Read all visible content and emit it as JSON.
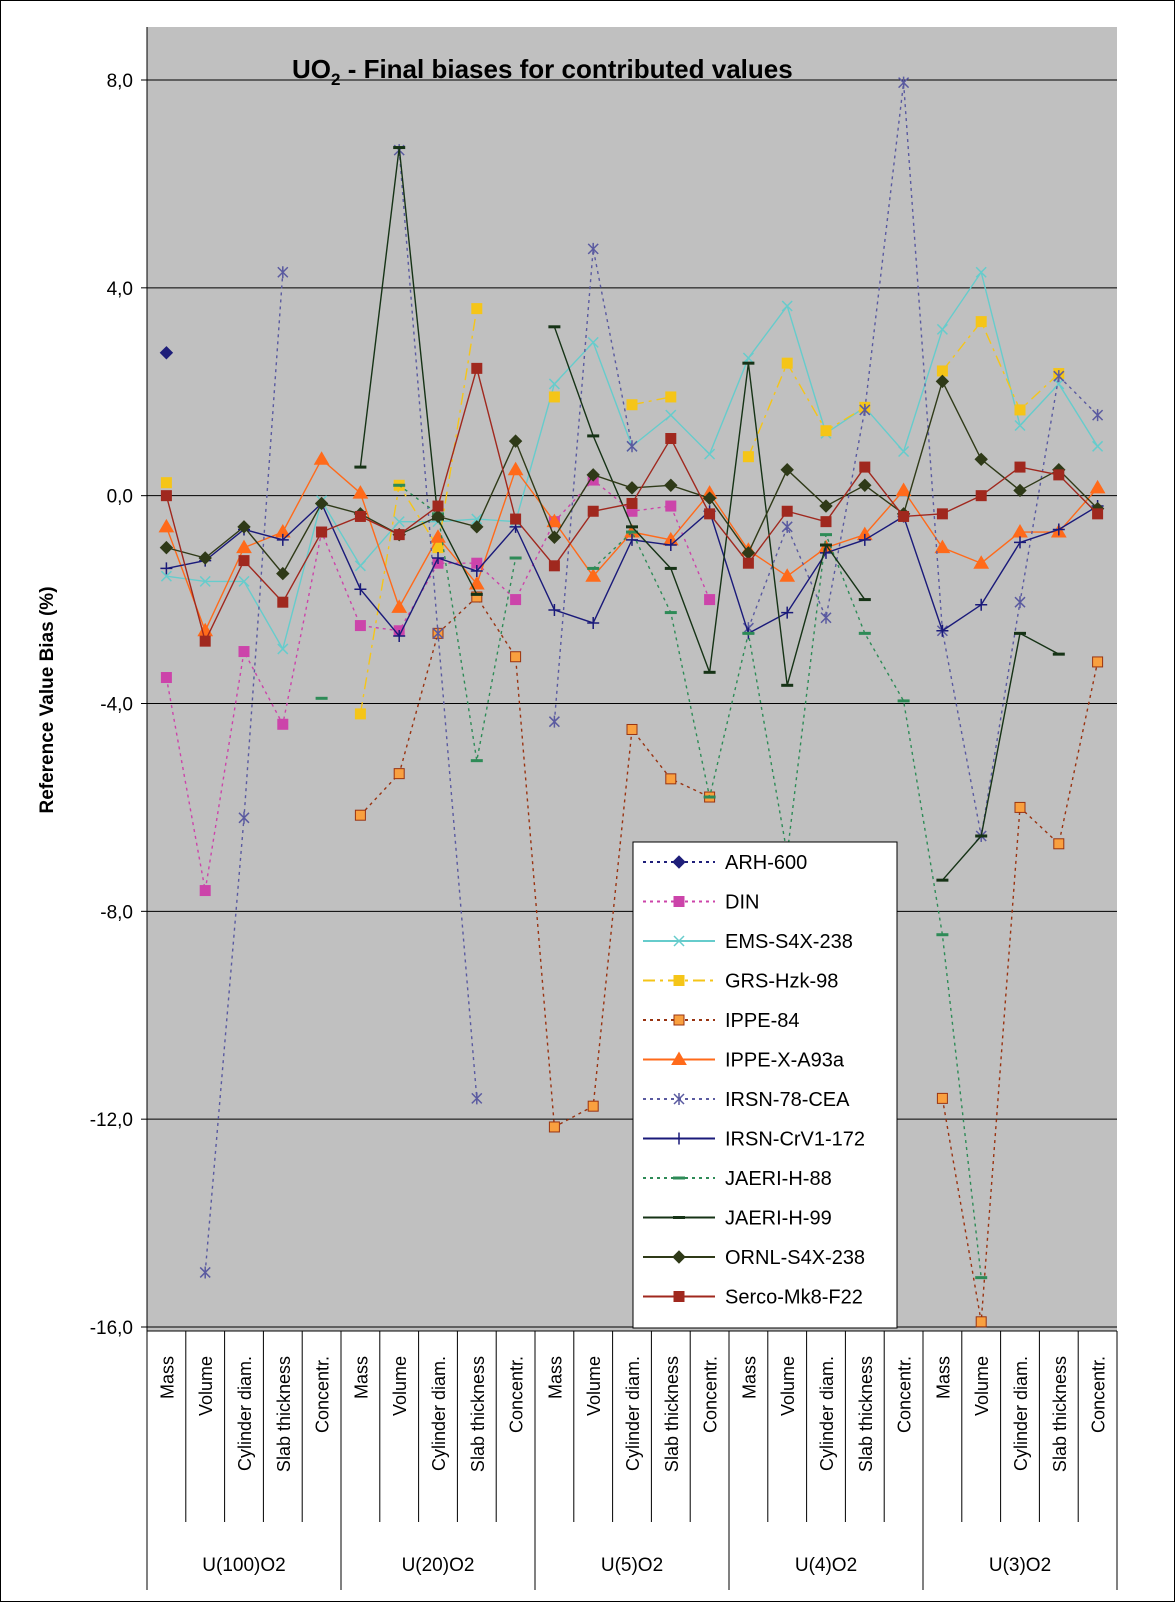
{
  "chart_data": {
    "type": "line",
    "title_main": "UO",
    "title_sub": "2",
    "title_rest": " - Final biases for contributed values",
    "ylabel": "Reference Value Bias (%)",
    "ylim": [
      -16,
      8
    ],
    "yticks": [
      8,
      4,
      0,
      -4,
      -8,
      -12,
      -16
    ],
    "ytick_labels": [
      "8,0",
      "4,0",
      "0,0",
      "-4,0",
      "-8,0",
      "-12,0",
      "-16,0"
    ],
    "grid": true,
    "legend_position": "lower-center",
    "categories": [
      "Mass",
      "Volume",
      "Cylinder diam.",
      "Slab thickness",
      "Concentr.",
      "Mass",
      "Volume",
      "Cylinder diam.",
      "Slab thickness",
      "Concentr.",
      "Mass",
      "Volume",
      "Cylinder diam.",
      "Slab thickness",
      "Concentr.",
      "Mass",
      "Volume",
      "Cylinder diam.",
      "Slab thickness",
      "Concentr.",
      "Mass",
      "Volume",
      "Cylinder diam.",
      "Slab thickness",
      "Concentr."
    ],
    "groups": [
      "U(100)O2",
      "U(20)O2",
      "U(5)O2",
      "U(4)O2",
      "U(3)O2"
    ],
    "series": [
      {
        "name": "ARH-600",
        "color": "#1f1f7a",
        "marker": "diamond",
        "dash": "dot",
        "values": [
          2.75,
          null,
          null,
          null,
          null,
          null,
          null,
          null,
          null,
          null,
          null,
          null,
          null,
          null,
          null,
          null,
          null,
          null,
          null,
          null,
          null,
          null,
          null,
          null,
          null
        ]
      },
      {
        "name": "DIN",
        "color": "#cc44aa",
        "marker": "square",
        "dash": "dot",
        "values": [
          -3.5,
          -7.6,
          -3.0,
          -4.4,
          -0.7,
          -2.5,
          -2.6,
          -1.3,
          -1.3,
          -2.0,
          -0.5,
          0.3,
          -0.3,
          -0.2,
          -2.0,
          null,
          null,
          null,
          null,
          null,
          null,
          null,
          null,
          null,
          null
        ]
      },
      {
        "name": "EMS-S4X-238",
        "color": "#66cccc",
        "marker": "x",
        "dash": "solid",
        "values": [
          -1.55,
          -1.65,
          -1.65,
          -2.95,
          -0.1,
          -1.35,
          -0.5,
          -0.5,
          -0.45,
          -0.5,
          2.15,
          2.95,
          0.95,
          1.55,
          0.8,
          2.65,
          3.65,
          1.2,
          1.7,
          0.85,
          3.2,
          4.3,
          1.35,
          2.15,
          0.95
        ]
      },
      {
        "name": "GRS-Hzk-98",
        "color": "#f5c518",
        "marker": "square",
        "dash": "dashdot",
        "values": [
          0.25,
          null,
          null,
          null,
          null,
          -4.2,
          0.2,
          -1.0,
          3.6,
          null,
          1.9,
          null,
          1.75,
          1.9,
          null,
          0.75,
          2.55,
          1.25,
          1.7,
          null,
          2.4,
          3.35,
          1.65,
          2.35,
          null
        ]
      },
      {
        "name": "IPPE-84",
        "color": "#993311",
        "marker": "square-orange",
        "dash": "dot",
        "values": [
          null,
          null,
          null,
          null,
          null,
          -6.15,
          -5.35,
          -2.65,
          -1.95,
          -3.1,
          -12.15,
          -11.75,
          -4.5,
          -5.45,
          -5.8,
          null,
          null,
          null,
          null,
          null,
          -11.6,
          -15.9,
          -6.0,
          -6.7,
          -3.2
        ]
      },
      {
        "name": "IPPE-X-A93a",
        "color": "#ff6a1a",
        "marker": "triangle",
        "dash": "solid",
        "values": [
          -0.6,
          -2.6,
          -1.0,
          -0.7,
          0.7,
          0.05,
          -2.15,
          -0.8,
          -1.7,
          0.5,
          -0.5,
          -1.55,
          -0.7,
          -0.85,
          0.05,
          -1.05,
          -1.55,
          -1.0,
          -0.75,
          0.1,
          -1.0,
          -1.3,
          -0.7,
          -0.7,
          0.15
        ]
      },
      {
        "name": "IRSN-78-CEA",
        "color": "#5a5aa0",
        "marker": "asterisk",
        "dash": "dot",
        "values": [
          null,
          -14.95,
          -6.2,
          4.3,
          null,
          null,
          6.65,
          -2.65,
          -11.6,
          null,
          -4.35,
          4.75,
          0.95,
          null,
          null,
          -2.55,
          -0.6,
          -2.35,
          1.65,
          7.95,
          -2.6,
          -6.55,
          -2.05,
          2.3,
          1.55
        ]
      },
      {
        "name": "IRSN-CrV1-172",
        "color": "#1a1a7a",
        "marker": "plus",
        "dash": "solid",
        "values": [
          -1.4,
          -1.25,
          -0.65,
          -0.85,
          -0.15,
          -1.8,
          -2.7,
          -1.2,
          -1.45,
          -0.6,
          -2.2,
          -2.45,
          -0.85,
          -0.95,
          -0.3,
          -2.65,
          -2.25,
          -1.1,
          -0.85,
          -0.4,
          -2.6,
          -2.1,
          -0.9,
          -0.65,
          -0.2
        ]
      },
      {
        "name": "JAERI-H-88",
        "color": "#2e8b57",
        "marker": "dash",
        "dash": "dot",
        "values": [
          null,
          null,
          null,
          null,
          -3.9,
          null,
          0.2,
          -0.35,
          -5.1,
          -1.2,
          null,
          -1.4,
          -0.7,
          -2.25,
          -5.8,
          -2.65,
          -6.9,
          -0.75,
          -2.65,
          -3.95,
          -8.45,
          -15.05,
          null,
          null,
          null
        ]
      },
      {
        "name": "JAERI-H-99",
        "color": "#163316",
        "marker": "dash",
        "dash": "solid",
        "values": [
          null,
          null,
          null,
          null,
          null,
          0.55,
          6.7,
          -0.45,
          -1.9,
          null,
          3.25,
          1.15,
          -0.6,
          -1.4,
          -3.4,
          2.55,
          -3.65,
          -0.95,
          -2.0,
          null,
          -7.4,
          -6.55,
          -2.65,
          -3.05,
          null
        ]
      },
      {
        "name": "ORNL-S4X-238",
        "color": "#2f3a18",
        "marker": "diamond",
        "dash": "solid",
        "values": [
          -1.0,
          -1.2,
          -0.6,
          -1.5,
          -0.15,
          -0.35,
          -0.75,
          -0.4,
          -0.6,
          1.05,
          -0.8,
          0.4,
          0.15,
          0.2,
          -0.05,
          -1.1,
          0.5,
          -0.2,
          0.2,
          -0.35,
          2.2,
          0.7,
          0.1,
          0.5,
          -0.25
        ]
      },
      {
        "name": "Serco-Mk8-F22",
        "color": "#a0281e",
        "marker": "square",
        "dash": "solid",
        "values": [
          0.0,
          -2.8,
          -1.25,
          -2.05,
          -0.7,
          -0.4,
          -0.75,
          -0.2,
          2.45,
          -0.45,
          -1.35,
          -0.3,
          -0.15,
          1.1,
          -0.35,
          -1.3,
          -0.3,
          -0.5,
          0.55,
          -0.4,
          -0.35,
          0.0,
          0.55,
          0.4,
          -0.35
        ]
      }
    ]
  }
}
